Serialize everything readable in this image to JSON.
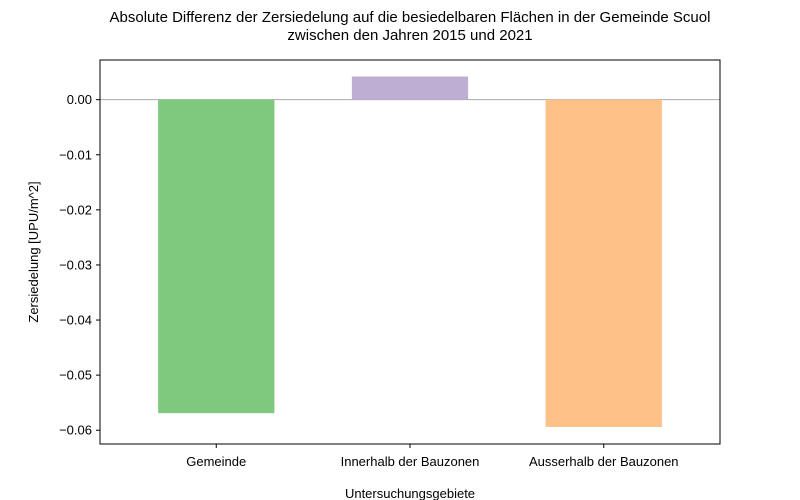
{
  "chart_data": {
    "type": "bar",
    "title_line1": "Absolute Differenz der Zersiedelung auf die besiedelbaren Flächen in der Gemeinde Scuol",
    "title_line2": "zwischen den Jahren 2015 und 2021",
    "xlabel": "Untersuchungsgebiete",
    "ylabel": "Zersiedelung [UPU/m^2]",
    "categories": [
      "Gemeinde",
      "Innerhalb der Bauzonen",
      "Ausserhalb der Bauzonen"
    ],
    "values": [
      -0.0569,
      0.0042,
      -0.0594
    ],
    "colors": [
      "#7fc97f",
      "#beaed4",
      "#fdc086"
    ],
    "ylim": [
      -0.0625,
      0.0072
    ],
    "yticks": [
      0.0,
      -0.01,
      -0.02,
      -0.03,
      -0.04,
      -0.05,
      -0.06
    ],
    "ytick_labels": [
      "0.00",
      "−0.01",
      "−0.02",
      "−0.03",
      "−0.04",
      "−0.05",
      "−0.06"
    ],
    "zero_line": true,
    "grid": false,
    "legend": "none"
  }
}
